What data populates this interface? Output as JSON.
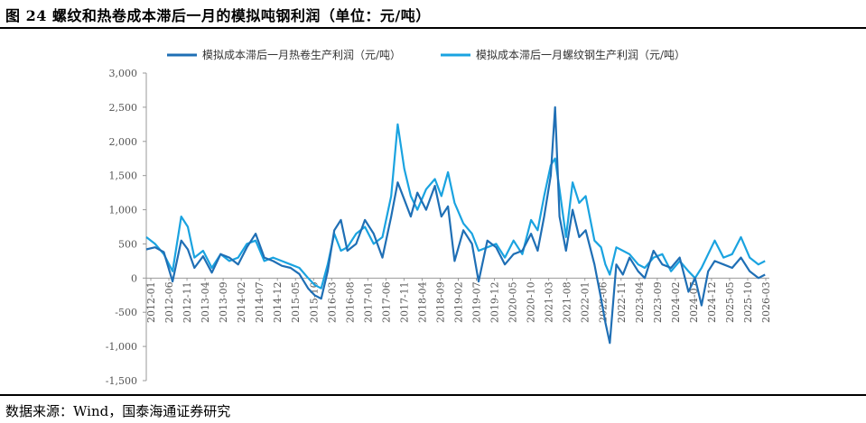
{
  "header": {
    "title": "图 24 螺纹和热卷成本滞后一月的模拟吨钢利润（单位：元/吨）"
  },
  "footer": {
    "source": "数据来源：Wind，国泰海通证券研究"
  },
  "colors": {
    "hot_rolled": "#1f6fb5",
    "rebar": "#1aa3e0",
    "axis": "#999999"
  },
  "chart_data": {
    "type": "line",
    "title": "螺纹和热卷成本滞后一月的模拟吨钢利润（单位：元/吨）",
    "xlabel": "",
    "ylabel": "",
    "ylim": [
      -1500,
      3000
    ],
    "yticks": [
      "3,000",
      "2,500",
      "2,000",
      "1,500",
      "1,000",
      "500",
      "0",
      "-500",
      "-1,000",
      "-1,500"
    ],
    "ytick_values": [
      3000,
      2500,
      2000,
      1500,
      1000,
      500,
      0,
      -500,
      -1000,
      -1500
    ],
    "xlim": [
      2012.0,
      2026.25
    ],
    "xticks": [
      "2012-01",
      "2012-06",
      "2012-11",
      "2013-04",
      "2013-09",
      "2014-02",
      "2014-07",
      "2014-12",
      "2015-05",
      "2015-10",
      "2016-03",
      "2016-08",
      "2017-01",
      "2017-06",
      "2017-11",
      "2018-04",
      "2018-09",
      "2019-02",
      "2019-07",
      "2019-12",
      "2020-05",
      "2020-10",
      "2021-03",
      "2021-08",
      "2022-01",
      "2022-06",
      "2022-11",
      "2023-04",
      "2023-09",
      "2024-02",
      "2024-07",
      "2024-12",
      "2025-05",
      "2025-10",
      "2026-03"
    ],
    "legend_position": "top",
    "series": [
      {
        "name": "模拟成本滞后一月热卷生产利润（元/吨）",
        "x": [
          2012.0,
          2012.2,
          2012.4,
          2012.6,
          2012.8,
          2012.95,
          2013.1,
          2013.3,
          2013.5,
          2013.7,
          2013.9,
          2014.1,
          2014.3,
          2014.5,
          2014.7,
          2014.9,
          2015.1,
          2015.3,
          2015.5,
          2015.7,
          2015.85,
          2016.0,
          2016.15,
          2016.3,
          2016.45,
          2016.6,
          2016.8,
          2017.0,
          2017.2,
          2017.4,
          2017.6,
          2017.75,
          2017.9,
          2018.05,
          2018.2,
          2018.4,
          2018.6,
          2018.75,
          2018.9,
          2019.05,
          2019.25,
          2019.45,
          2019.6,
          2019.8,
          2020.0,
          2020.2,
          2020.4,
          2020.6,
          2020.8,
          2020.95,
          2021.1,
          2021.25,
          2021.35,
          2021.45,
          2021.6,
          2021.75,
          2021.9,
          2022.05,
          2022.25,
          2022.4,
          2022.5,
          2022.6,
          2022.75,
          2022.9,
          2023.05,
          2023.25,
          2023.4,
          2023.6,
          2023.8,
          2024.0,
          2024.2,
          2024.4,
          2024.55,
          2024.7,
          2024.85,
          2025.0,
          2025.2,
          2025.4,
          2025.6,
          2025.8,
          2026.0,
          2026.15
        ],
        "values": [
          420,
          450,
          380,
          -50,
          550,
          420,
          150,
          320,
          80,
          350,
          300,
          200,
          450,
          650,
          300,
          250,
          180,
          150,
          60,
          -150,
          -250,
          -300,
          100,
          700,
          850,
          400,
          500,
          850,
          650,
          300,
          900,
          1400,
          1150,
          900,
          1250,
          1000,
          1350,
          900,
          1050,
          250,
          700,
          500,
          -50,
          550,
          450,
          200,
          350,
          400,
          650,
          400,
          900,
          1500,
          2500,
          900,
          400,
          1000,
          600,
          700,
          200,
          -300,
          -650,
          -950,
          200,
          50,
          300,
          100,
          0,
          400,
          200,
          150,
          300,
          -200,
          0,
          -400,
          100,
          250,
          200,
          150,
          300,
          100,
          0,
          50
        ]
      },
      {
        "name": "模拟成本滞后一月螺纹钢生产利润（元/吨）",
        "x": [
          2012.0,
          2012.2,
          2012.4,
          2012.6,
          2012.8,
          2012.95,
          2013.1,
          2013.3,
          2013.5,
          2013.7,
          2013.9,
          2014.1,
          2014.3,
          2014.5,
          2014.7,
          2014.9,
          2015.1,
          2015.3,
          2015.5,
          2015.7,
          2015.85,
          2016.0,
          2016.15,
          2016.3,
          2016.45,
          2016.6,
          2016.8,
          2017.0,
          2017.2,
          2017.4,
          2017.6,
          2017.75,
          2017.9,
          2018.05,
          2018.2,
          2018.4,
          2018.6,
          2018.75,
          2018.9,
          2019.05,
          2019.25,
          2019.45,
          2019.6,
          2019.8,
          2020.0,
          2020.2,
          2020.4,
          2020.6,
          2020.8,
          2020.95,
          2021.1,
          2021.25,
          2021.35,
          2021.45,
          2021.6,
          2021.75,
          2021.9,
          2022.05,
          2022.25,
          2022.4,
          2022.5,
          2022.6,
          2022.75,
          2022.9,
          2023.05,
          2023.25,
          2023.4,
          2023.6,
          2023.8,
          2024.0,
          2024.2,
          2024.4,
          2024.55,
          2024.7,
          2024.85,
          2025.0,
          2025.2,
          2025.4,
          2025.6,
          2025.8,
          2026.0,
          2026.15
        ],
        "values": [
          600,
          500,
          350,
          100,
          900,
          750,
          300,
          400,
          150,
          350,
          250,
          300,
          500,
          550,
          250,
          300,
          250,
          200,
          150,
          0,
          -100,
          -150,
          200,
          650,
          400,
          450,
          650,
          750,
          500,
          600,
          1200,
          2250,
          1600,
          1200,
          1000,
          1300,
          1450,
          1200,
          1550,
          1100,
          800,
          650,
          400,
          450,
          500,
          300,
          550,
          350,
          850,
          700,
          1200,
          1650,
          1750,
          1300,
          600,
          1400,
          1100,
          1200,
          550,
          450,
          200,
          50,
          450,
          400,
          350,
          200,
          150,
          300,
          350,
          100,
          250,
          100,
          0,
          150,
          350,
          550,
          300,
          350,
          600,
          300,
          200,
          250
        ]
      }
    ]
  }
}
